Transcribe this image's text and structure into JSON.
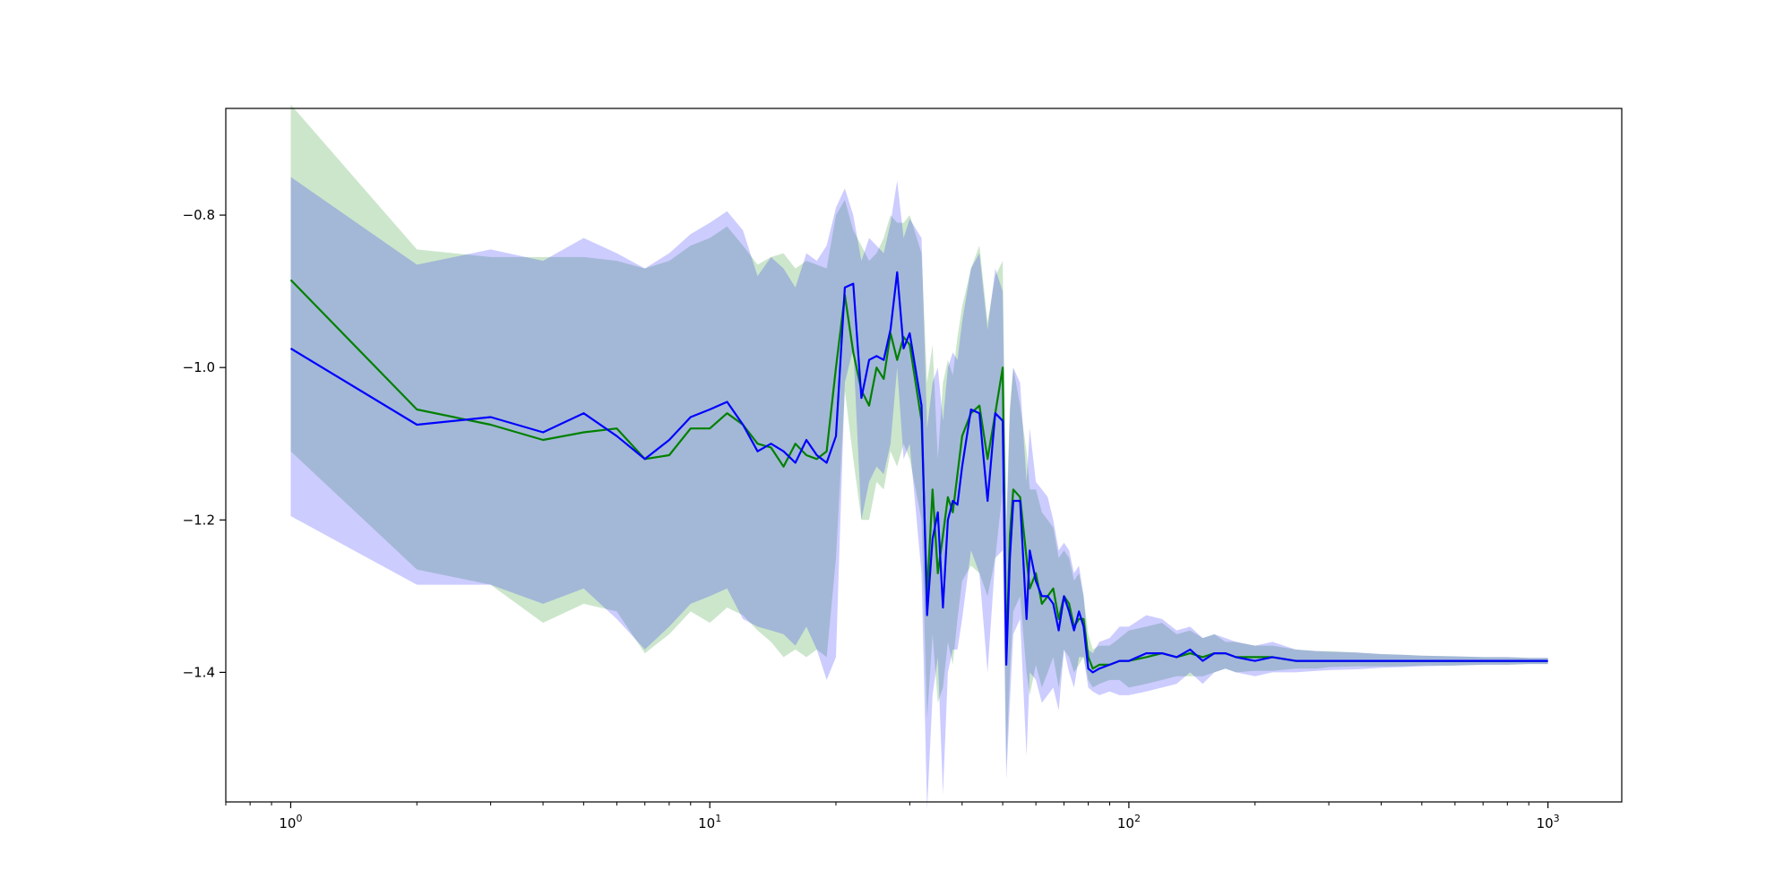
{
  "chart_data": {
    "type": "line",
    "title": "",
    "xlabel": "",
    "ylabel": "",
    "xscale": "log",
    "xlim": [
      0.7,
      1500
    ],
    "ylim": [
      -1.57,
      -0.66
    ],
    "grid": false,
    "legend": "none",
    "x_ticks": [
      {
        "value": 1,
        "base": "10",
        "exp": "0"
      },
      {
        "value": 10,
        "base": "10",
        "exp": "1"
      },
      {
        "value": 100,
        "base": "10",
        "exp": "2"
      },
      {
        "value": 1000,
        "base": "10",
        "exp": "3"
      }
    ],
    "y_ticks": [
      {
        "value": -0.8,
        "label": "−0.8"
      },
      {
        "value": -1.0,
        "label": "−1.0"
      },
      {
        "value": -1.2,
        "label": "−1.2"
      },
      {
        "value": -1.4,
        "label": "−1.4"
      }
    ],
    "series": [
      {
        "color": "#008000",
        "band_color": "#008000",
        "band_opacity": 0.2,
        "x": [
          1,
          2,
          3,
          4,
          5,
          6,
          7,
          8,
          9,
          10,
          11,
          12,
          13,
          14,
          15,
          16,
          17,
          18,
          19,
          20,
          21,
          22,
          23,
          24,
          25,
          26,
          27,
          28,
          29,
          30,
          32,
          33,
          34,
          35,
          36,
          37,
          38,
          39,
          40,
          42,
          44,
          46,
          48,
          50,
          51,
          52,
          53,
          55,
          57,
          58,
          60,
          62,
          64,
          66,
          68,
          70,
          72,
          74,
          76,
          78,
          80,
          82,
          85,
          90,
          95,
          100,
          110,
          120,
          130,
          140,
          150,
          160,
          170,
          180,
          200,
          220,
          250,
          280,
          300,
          350,
          400,
          450,
          500,
          600,
          700,
          800,
          900,
          1000
        ],
        "y": [
          -0.885,
          -1.055,
          -1.075,
          -1.095,
          -1.085,
          -1.08,
          -1.12,
          -1.115,
          -1.08,
          -1.08,
          -1.06,
          -1.075,
          -1.1,
          -1.105,
          -1.13,
          -1.1,
          -1.115,
          -1.12,
          -1.11,
          -1.0,
          -0.905,
          -0.98,
          -1.03,
          -1.05,
          -1.0,
          -1.015,
          -0.955,
          -0.99,
          -0.96,
          -0.97,
          -1.07,
          -1.3,
          -1.16,
          -1.27,
          -1.22,
          -1.17,
          -1.19,
          -1.14,
          -1.09,
          -1.06,
          -1.05,
          -1.12,
          -1.06,
          -1.0,
          -1.38,
          -1.22,
          -1.16,
          -1.17,
          -1.25,
          -1.29,
          -1.27,
          -1.31,
          -1.3,
          -1.29,
          -1.33,
          -1.3,
          -1.31,
          -1.34,
          -1.33,
          -1.33,
          -1.38,
          -1.395,
          -1.39,
          -1.39,
          -1.385,
          -1.385,
          -1.38,
          -1.375,
          -1.38,
          -1.375,
          -1.38,
          -1.375,
          -1.375,
          -1.38,
          -1.38,
          -1.38,
          -1.385,
          -1.385,
          -1.385,
          -1.385,
          -1.385,
          -1.385,
          -1.385,
          -1.385,
          -1.385,
          -1.385,
          -1.385,
          -1.385
        ],
        "upper": [
          -0.655,
          -0.845,
          -0.855,
          -0.855,
          -0.855,
          -0.86,
          -0.87,
          -0.86,
          -0.84,
          -0.83,
          -0.815,
          -0.84,
          -0.865,
          -0.855,
          -0.85,
          -0.87,
          -0.86,
          -0.865,
          -0.87,
          -0.8,
          -0.78,
          -0.82,
          -0.84,
          -0.86,
          -0.85,
          -0.83,
          -0.8,
          -0.81,
          -0.81,
          -0.8,
          -0.85,
          -1.02,
          -0.97,
          -1.12,
          -1.02,
          -0.99,
          -1.01,
          -0.96,
          -0.92,
          -0.87,
          -0.84,
          -0.94,
          -0.88,
          -0.86,
          -1.2,
          -1.05,
          -1.0,
          -1.05,
          -1.11,
          -1.16,
          -1.16,
          -1.19,
          -1.2,
          -1.21,
          -1.25,
          -1.24,
          -1.25,
          -1.28,
          -1.27,
          -1.3,
          -1.35,
          -1.37,
          -1.365,
          -1.365,
          -1.355,
          -1.345,
          -1.34,
          -1.335,
          -1.35,
          -1.345,
          -1.355,
          -1.35,
          -1.36,
          -1.36,
          -1.365,
          -1.365,
          -1.37,
          -1.372,
          -1.372,
          -1.374,
          -1.376,
          -1.377,
          -1.378,
          -1.379,
          -1.38,
          -1.38,
          -1.381,
          -1.381
        ],
        "lower": [
          -1.11,
          -1.265,
          -1.285,
          -1.335,
          -1.31,
          -1.32,
          -1.375,
          -1.35,
          -1.32,
          -1.335,
          -1.315,
          -1.325,
          -1.345,
          -1.36,
          -1.38,
          -1.37,
          -1.38,
          -1.37,
          -1.38,
          -1.25,
          -1.03,
          -1.12,
          -1.2,
          -1.2,
          -1.15,
          -1.16,
          -1.11,
          -1.13,
          -1.1,
          -1.12,
          -1.2,
          -1.46,
          -1.35,
          -1.44,
          -1.42,
          -1.36,
          -1.39,
          -1.33,
          -1.28,
          -1.26,
          -1.27,
          -1.3,
          -1.25,
          -1.16,
          -1.52,
          -1.4,
          -1.32,
          -1.3,
          -1.4,
          -1.43,
          -1.39,
          -1.42,
          -1.4,
          -1.38,
          -1.42,
          -1.37,
          -1.38,
          -1.4,
          -1.39,
          -1.38,
          -1.41,
          -1.42,
          -1.415,
          -1.41,
          -1.41,
          -1.42,
          -1.415,
          -1.41,
          -1.405,
          -1.405,
          -1.405,
          -1.4,
          -1.395,
          -1.4,
          -1.398,
          -1.398,
          -1.395,
          -1.395,
          -1.393,
          -1.392,
          -1.392,
          -1.392,
          -1.391,
          -1.391,
          -1.39,
          -1.39,
          -1.389,
          -1.389
        ]
      },
      {
        "color": "#0000ff",
        "band_color": "#0000ff",
        "band_opacity": 0.2,
        "x": [
          1,
          2,
          3,
          4,
          5,
          6,
          7,
          8,
          9,
          10,
          11,
          12,
          13,
          14,
          15,
          16,
          17,
          18,
          19,
          20,
          21,
          22,
          23,
          24,
          25,
          26,
          27,
          28,
          29,
          30,
          32,
          33,
          34,
          35,
          36,
          37,
          38,
          39,
          40,
          42,
          44,
          46,
          48,
          50,
          51,
          52,
          53,
          55,
          57,
          58,
          60,
          62,
          64,
          66,
          68,
          70,
          72,
          74,
          76,
          78,
          80,
          82,
          85,
          90,
          95,
          100,
          110,
          120,
          130,
          140,
          150,
          160,
          170,
          180,
          200,
          220,
          250,
          280,
          300,
          350,
          400,
          450,
          500,
          600,
          700,
          800,
          900,
          1000
        ],
        "y": [
          -0.975,
          -1.075,
          -1.065,
          -1.085,
          -1.06,
          -1.09,
          -1.12,
          -1.095,
          -1.065,
          -1.055,
          -1.045,
          -1.075,
          -1.11,
          -1.1,
          -1.11,
          -1.125,
          -1.095,
          -1.115,
          -1.125,
          -1.09,
          -0.895,
          -0.89,
          -1.04,
          -0.99,
          -0.985,
          -0.99,
          -0.95,
          -0.875,
          -0.975,
          -0.955,
          -1.05,
          -1.325,
          -1.225,
          -1.19,
          -1.315,
          -1.2,
          -1.175,
          -1.18,
          -1.13,
          -1.055,
          -1.06,
          -1.175,
          -1.06,
          -1.07,
          -1.39,
          -1.25,
          -1.175,
          -1.175,
          -1.33,
          -1.24,
          -1.28,
          -1.3,
          -1.3,
          -1.31,
          -1.345,
          -1.3,
          -1.32,
          -1.345,
          -1.32,
          -1.34,
          -1.395,
          -1.4,
          -1.395,
          -1.39,
          -1.385,
          -1.385,
          -1.375,
          -1.375,
          -1.38,
          -1.37,
          -1.385,
          -1.375,
          -1.375,
          -1.38,
          -1.385,
          -1.38,
          -1.385,
          -1.385,
          -1.385,
          -1.385,
          -1.385,
          -1.385,
          -1.385,
          -1.385,
          -1.385,
          -1.385,
          -1.385,
          -1.385
        ],
        "upper": [
          -0.75,
          -0.865,
          -0.845,
          -0.86,
          -0.83,
          -0.85,
          -0.87,
          -0.85,
          -0.825,
          -0.81,
          -0.795,
          -0.82,
          -0.88,
          -0.855,
          -0.87,
          -0.895,
          -0.85,
          -0.86,
          -0.84,
          -0.79,
          -0.765,
          -0.8,
          -0.86,
          -0.83,
          -0.84,
          -0.85,
          -0.81,
          -0.755,
          -0.83,
          -0.805,
          -0.83,
          -1.08,
          -1.02,
          -1.0,
          -1.07,
          -1.0,
          -0.98,
          -0.99,
          -0.94,
          -0.87,
          -0.85,
          -0.95,
          -0.87,
          -0.9,
          -1.22,
          -1.06,
          -1.0,
          -1.02,
          -1.15,
          -1.08,
          -1.15,
          -1.16,
          -1.17,
          -1.2,
          -1.24,
          -1.23,
          -1.24,
          -1.27,
          -1.26,
          -1.3,
          -1.37,
          -1.375,
          -1.36,
          -1.355,
          -1.34,
          -1.34,
          -1.325,
          -1.33,
          -1.345,
          -1.34,
          -1.355,
          -1.35,
          -1.355,
          -1.36,
          -1.365,
          -1.36,
          -1.37,
          -1.372,
          -1.373,
          -1.374,
          -1.376,
          -1.377,
          -1.378,
          -1.379,
          -1.38,
          -1.38,
          -1.381,
          -1.381
        ],
        "lower": [
          -1.195,
          -1.285,
          -1.285,
          -1.31,
          -1.29,
          -1.33,
          -1.37,
          -1.34,
          -1.31,
          -1.3,
          -1.29,
          -1.33,
          -1.34,
          -1.345,
          -1.35,
          -1.365,
          -1.34,
          -1.37,
          -1.41,
          -1.38,
          -1.02,
          -0.975,
          -1.2,
          -1.15,
          -1.13,
          -1.14,
          -1.1,
          -1.0,
          -1.12,
          -1.1,
          -1.27,
          -1.58,
          -1.43,
          -1.38,
          -1.56,
          -1.4,
          -1.37,
          -1.37,
          -1.33,
          -1.24,
          -1.27,
          -1.4,
          -1.25,
          -1.24,
          -1.54,
          -1.44,
          -1.35,
          -1.33,
          -1.51,
          -1.4,
          -1.41,
          -1.44,
          -1.43,
          -1.42,
          -1.45,
          -1.37,
          -1.4,
          -1.42,
          -1.38,
          -1.38,
          -1.42,
          -1.425,
          -1.43,
          -1.425,
          -1.43,
          -1.43,
          -1.425,
          -1.42,
          -1.415,
          -1.4,
          -1.415,
          -1.4,
          -1.395,
          -1.4,
          -1.405,
          -1.4,
          -1.4,
          -1.398,
          -1.397,
          -1.396,
          -1.394,
          -1.393,
          -1.392,
          -1.391,
          -1.39,
          -1.39,
          -1.389,
          -1.389
        ]
      }
    ]
  }
}
